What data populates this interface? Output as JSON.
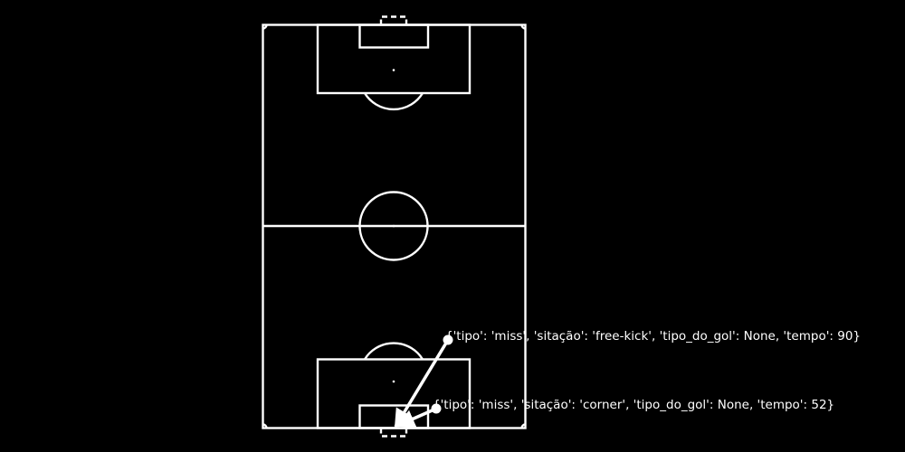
{
  "colors": {
    "background": "#000000",
    "lines": "#ffffff",
    "shot": "#ffffff"
  },
  "shots": [
    {
      "label": "{'tipo': 'miss', 'sitação': 'free-kick', 'tipo_do_gol': None, 'tempo': 90}",
      "outcome": "miss"
    },
    {
      "label": "{'tipo': 'miss', 'sitação': 'corner', 'tipo_do_gol': None, 'tempo': 52}",
      "outcome": "miss"
    }
  ]
}
